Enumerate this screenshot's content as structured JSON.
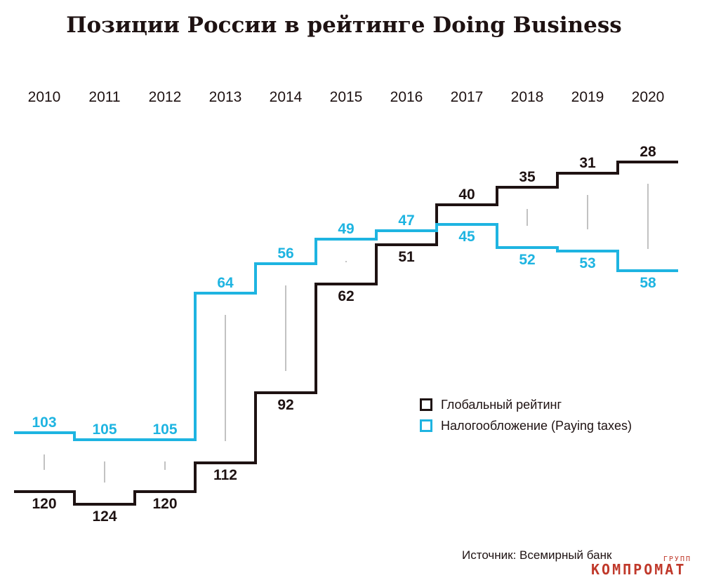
{
  "chart_data": {
    "type": "line",
    "title": "Позиции России в рейтинге Doing Business",
    "x": [
      "2010",
      "2011",
      "2012",
      "2013",
      "2014",
      "2015",
      "2016",
      "2017",
      "2018",
      "2019",
      "2020"
    ],
    "series": [
      {
        "name": "Глобальный рейтинг",
        "color": "#1e1212",
        "values": [
          120,
          124,
          120,
          112,
          92,
          62,
          51,
          40,
          35,
          31,
          28
        ]
      },
      {
        "name": "Налогообложение (Paying taxes)",
        "color": "#1eb4e1",
        "values": [
          103,
          105,
          105,
          64,
          56,
          49,
          47,
          45,
          52,
          53,
          58
        ]
      }
    ],
    "xlabel": "",
    "ylabel": "",
    "step": true,
    "y_inverted": true,
    "legend": "right"
  },
  "source": "Источник: Всемирный банк",
  "watermark": {
    "small": "ГРУПП",
    "main": "КОМПРОМАТ"
  }
}
